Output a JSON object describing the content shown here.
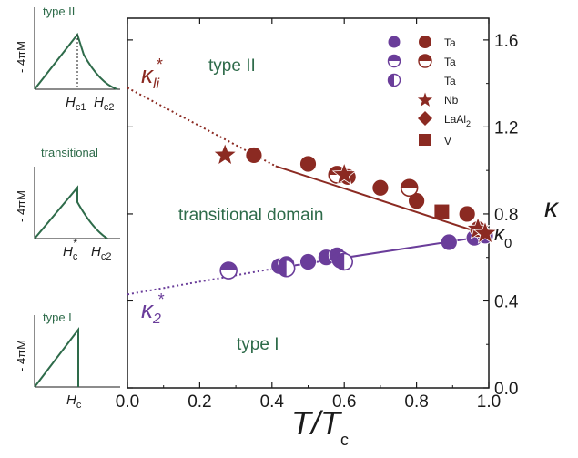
{
  "chart_data": {
    "type": "scatter",
    "xlabel": {
      "main": "T/T",
      "sub": "c"
    },
    "ylabel": "κ",
    "xlim": [
      0.0,
      1.0
    ],
    "ylim": [
      0.0,
      1.7
    ],
    "x_ticks": [
      "0.0",
      "0.2",
      "0.4",
      "0.6",
      "0.8",
      "1.0"
    ],
    "y_ticks": [
      "0.0",
      "0.4",
      "0.8",
      "1.2",
      "1.6"
    ],
    "grid": false,
    "legend_position": "top-right",
    "region_labels": [
      "type II",
      "transitional domain",
      "type I"
    ],
    "annotations": {
      "k_li": {
        "main": "κ",
        "sub": "li",
        "sup": "*"
      },
      "k_2": {
        "main": "κ",
        "sub": "2",
        "sup": "*"
      },
      "k_0": {
        "main": "κ",
        "sub": "0"
      }
    },
    "fit_lines": [
      {
        "name": "κ_li*",
        "color": "#8b2a22",
        "solid": [
          [
            0.41,
            1.02
          ],
          [
            1.0,
            0.7
          ]
        ],
        "dashed": [
          [
            0.0,
            1.38
          ],
          [
            0.41,
            1.02
          ]
        ]
      },
      {
        "name": "κ_2*",
        "color": "#6a3d9a",
        "solid": [
          [
            0.41,
            0.55
          ],
          [
            1.0,
            0.7
          ]
        ],
        "dashed": [
          [
            0.0,
            0.43
          ],
          [
            0.41,
            0.55
          ]
        ]
      }
    ],
    "series": [
      {
        "name": "Ta",
        "material": "Ta",
        "marker": "circle-full",
        "color": "#6a3d9a",
        "points": [
          [
            0.42,
            0.56
          ],
          [
            0.44,
            0.57
          ],
          [
            0.5,
            0.58
          ],
          [
            0.55,
            0.6
          ],
          [
            0.58,
            0.61
          ],
          [
            0.89,
            0.67
          ],
          [
            0.96,
            0.69
          ],
          [
            0.99,
            0.7
          ]
        ]
      },
      {
        "name": "Ta",
        "material": "Ta",
        "marker": "circle-full",
        "color": "#8b2a22",
        "points": [
          [
            0.35,
            1.07
          ],
          [
            0.5,
            1.03
          ],
          [
            0.61,
            0.97
          ],
          [
            0.7,
            0.92
          ],
          [
            0.8,
            0.86
          ],
          [
            0.94,
            0.8
          ],
          [
            0.97,
            0.73
          ]
        ]
      },
      {
        "name": "Ta",
        "material": "Ta",
        "marker": "circle-half-top",
        "color": "#6a3d9a",
        "points": [
          [
            0.28,
            0.54
          ]
        ]
      },
      {
        "name": "Ta",
        "material": "Ta",
        "marker": "circle-half-top",
        "color": "#8b2a22",
        "points": [
          [
            0.58,
            0.98
          ],
          [
            0.78,
            0.92
          ]
        ]
      },
      {
        "name": "Ta",
        "material": "Ta",
        "marker": "circle-half-left",
        "color": "#6a3d9a",
        "points": [
          [
            0.44,
            0.55
          ],
          [
            0.59,
            0.59
          ],
          [
            0.6,
            0.58
          ]
        ]
      },
      {
        "name": "Nb",
        "material": "Nb",
        "marker": "star",
        "color": "#8b2a22",
        "points": [
          [
            0.27,
            1.07
          ],
          [
            0.6,
            0.98
          ],
          [
            0.97,
            0.73
          ],
          [
            0.99,
            0.71
          ]
        ]
      },
      {
        "name": "LaAl2",
        "material": "LaAl₂",
        "marker": "diamond",
        "color": "#8b2a22",
        "points": []
      },
      {
        "name": "V",
        "material": "V",
        "marker": "square",
        "color": "#8b2a22",
        "points": [
          [
            0.87,
            0.81
          ]
        ]
      }
    ]
  },
  "insets": [
    {
      "title": "type II",
      "ylabel": "- 4πM",
      "xlabels": [
        {
          "main": "H",
          "sub": "c1"
        },
        {
          "main": "H",
          "sub": "c2"
        }
      ]
    },
    {
      "title": "transitional",
      "ylabel": "- 4πM",
      "xlabels": [
        {
          "main": "H",
          "sub": "c",
          "sup": "*"
        },
        {
          "main": "H",
          "sub": "c2"
        }
      ]
    },
    {
      "title": "type I",
      "ylabel": "- 4πM",
      "xlabels": [
        {
          "main": "H",
          "sub": "c"
        }
      ]
    }
  ],
  "legend": [
    {
      "marker": "pair-full",
      "label": "Ta"
    },
    {
      "marker": "pair-half-top",
      "label": "Ta"
    },
    {
      "marker": "pair-half-left",
      "label": "Ta"
    },
    {
      "marker": "star",
      "label": "Nb"
    },
    {
      "marker": "diamond",
      "label": {
        "main": "LaAl",
        "sub": "2"
      }
    },
    {
      "marker": "square",
      "label": "V"
    }
  ],
  "colors": {
    "brown": "#8b2a22",
    "purple": "#6a3d9a",
    "green": "#2e6b4a"
  }
}
